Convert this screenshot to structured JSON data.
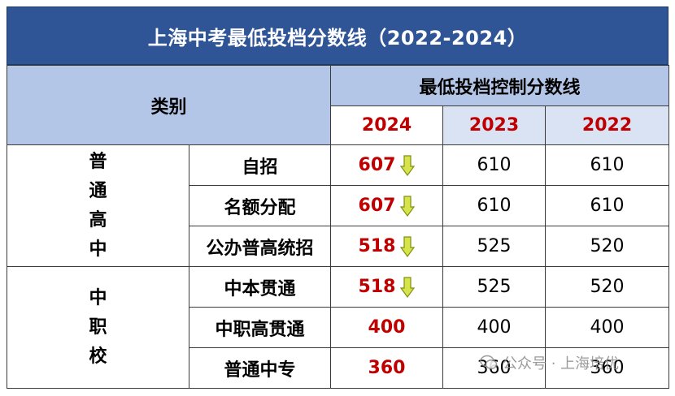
{
  "title": "上海中考最低投档分数线（2022-2024）",
  "header": {
    "category": "类别",
    "group": "最低投档控制分数线",
    "years": [
      "2024",
      "2023",
      "2022"
    ]
  },
  "groups": [
    {
      "name_chars": [
        "普",
        "通",
        "高",
        "中"
      ]
    },
    {
      "name_chars": [
        "中",
        "职",
        "校"
      ]
    }
  ],
  "rows": [
    {
      "label": "自招",
      "v2024": "607",
      "down": true,
      "v2023": "610",
      "v2022": "610"
    },
    {
      "label": "名额分配",
      "v2024": "607",
      "down": true,
      "v2023": "610",
      "v2022": "610"
    },
    {
      "label": "公办普高统招",
      "v2024": "518",
      "down": true,
      "v2023": "525",
      "v2022": "520"
    },
    {
      "label": "中本贯通",
      "v2024": "518",
      "down": true,
      "v2023": "525",
      "v2022": "520"
    },
    {
      "label": "中职高贯通",
      "v2024": "400",
      "down": false,
      "v2023": "400",
      "v2022": "400"
    },
    {
      "label": "普通中专",
      "v2024": "360",
      "down": false,
      "v2023": "360",
      "v2022": "360"
    }
  ],
  "watermark": "公众号 · 上海培优",
  "colors": {
    "title_bg": "#2f5597",
    "header_bg": "#b4c6e7",
    "accent_red": "#c00000",
    "arrow": "#c9d92c"
  },
  "icons": {
    "down_arrow": "down-arrow-icon",
    "watermark": "wechat-icon"
  }
}
